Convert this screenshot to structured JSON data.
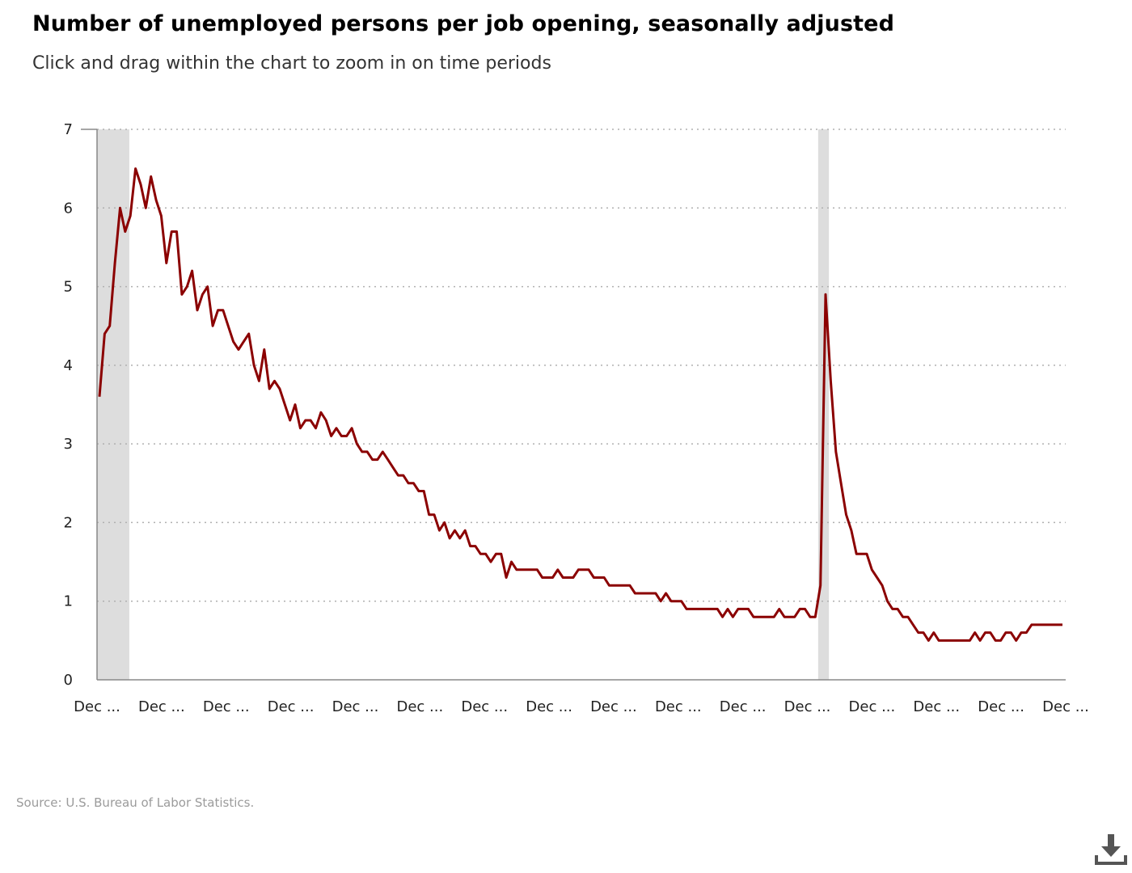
{
  "title": "Number of unemployed persons per job opening, seasonally adjusted",
  "subtitle": "Click and drag within the chart to zoom in on time periods",
  "source": "Source: U.S. Bureau of Labor Statistics.",
  "download_icon": "download-icon",
  "colors": {
    "line": "#8b0000",
    "recession": "#dddddd",
    "grid": "#b0b0b0",
    "axis": "#888888"
  },
  "chart_data": {
    "type": "line",
    "title": "Number of unemployed persons per job opening, seasonally adjusted",
    "xlabel": "",
    "ylabel": "",
    "ylim": [
      0,
      7
    ],
    "yticks": [
      0,
      1,
      2,
      3,
      4,
      5,
      6,
      7
    ],
    "grid": true,
    "x_start": "Dec 2008",
    "x_end": "Dec 2023",
    "x_tick_labels": [
      "Dec ...",
      "Dec ...",
      "Dec ...",
      "Dec ...",
      "Dec ...",
      "Dec ...",
      "Dec ...",
      "Dec ...",
      "Dec ...",
      "Dec ...",
      "Dec ...",
      "Dec ...",
      "Dec ...",
      "Dec ...",
      "Dec ...",
      "Dec ..."
    ],
    "recession_shading": [
      {
        "start": "Dec 2008",
        "end": "Jun 2009"
      },
      {
        "start": "Feb 2020",
        "end": "Apr 2020"
      }
    ],
    "series": [
      {
        "values": [
          3.6,
          4.4,
          4.5,
          5.3,
          6.0,
          5.7,
          5.9,
          6.5,
          6.3,
          6.0,
          6.4,
          6.1,
          5.9,
          5.3,
          5.7,
          5.7,
          4.9,
          5.0,
          5.2,
          4.7,
          4.9,
          5.0,
          4.5,
          4.7,
          4.7,
          4.5,
          4.3,
          4.2,
          4.3,
          4.4,
          4.0,
          3.8,
          4.2,
          3.7,
          3.8,
          3.7,
          3.5,
          3.3,
          3.5,
          3.2,
          3.3,
          3.3,
          3.2,
          3.4,
          3.3,
          3.1,
          3.2,
          3.1,
          3.1,
          3.2,
          3.0,
          2.9,
          2.9,
          2.8,
          2.8,
          2.9,
          2.8,
          2.7,
          2.6,
          2.6,
          2.5,
          2.5,
          2.4,
          2.4,
          2.1,
          2.1,
          1.9,
          2.0,
          1.8,
          1.9,
          1.8,
          1.9,
          1.7,
          1.7,
          1.6,
          1.6,
          1.5,
          1.6,
          1.6,
          1.3,
          1.5,
          1.4,
          1.4,
          1.4,
          1.4,
          1.4,
          1.3,
          1.3,
          1.3,
          1.4,
          1.3,
          1.3,
          1.3,
          1.4,
          1.4,
          1.4,
          1.3,
          1.3,
          1.3,
          1.2,
          1.2,
          1.2,
          1.2,
          1.2,
          1.1,
          1.1,
          1.1,
          1.1,
          1.1,
          1.0,
          1.1,
          1.0,
          1.0,
          1.0,
          0.9,
          0.9,
          0.9,
          0.9,
          0.9,
          0.9,
          0.9,
          0.8,
          0.9,
          0.8,
          0.9,
          0.9,
          0.9,
          0.8,
          0.8,
          0.8,
          0.8,
          0.8,
          0.9,
          0.8,
          0.8,
          0.8,
          0.9,
          0.9,
          0.8,
          0.8,
          1.2,
          4.9,
          3.8,
          2.9,
          2.5,
          2.1,
          1.9,
          1.6,
          1.6,
          1.6,
          1.4,
          1.3,
          1.2,
          1.0,
          0.9,
          0.9,
          0.8,
          0.8,
          0.7,
          0.6,
          0.6,
          0.5,
          0.6,
          0.5,
          0.5,
          0.5,
          0.5,
          0.5,
          0.5,
          0.5,
          0.6,
          0.5,
          0.6,
          0.6,
          0.5,
          0.5,
          0.6,
          0.6,
          0.5,
          0.6,
          0.6,
          0.7,
          0.7,
          0.7,
          0.7,
          0.7,
          0.7,
          0.7
        ]
      }
    ]
  }
}
